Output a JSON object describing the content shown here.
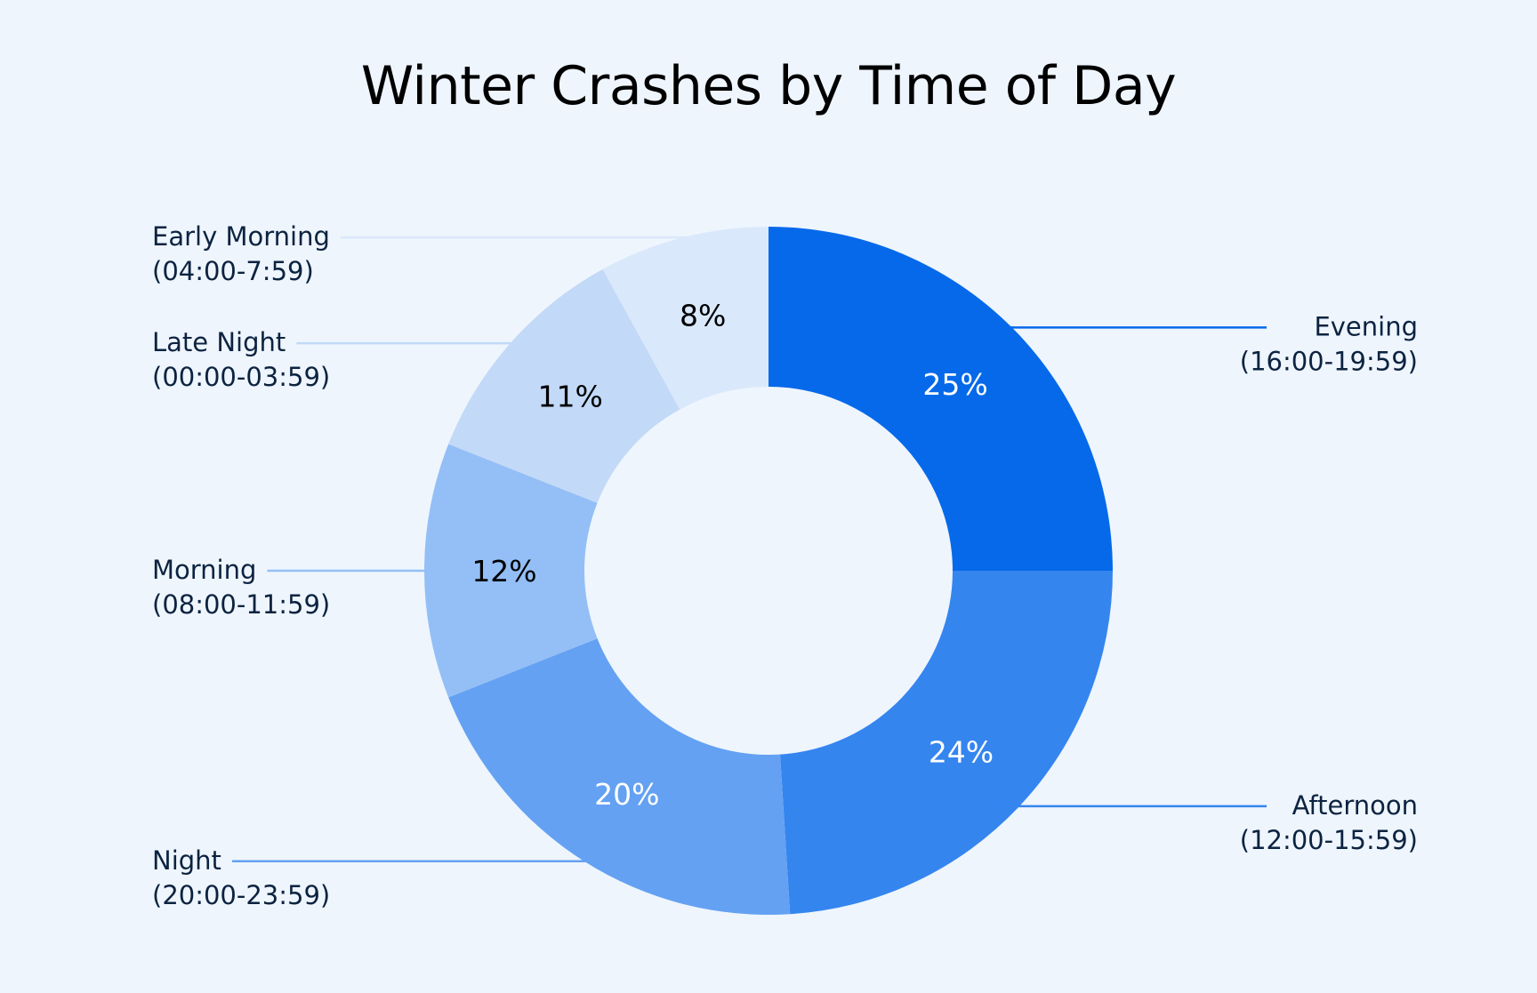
{
  "chart_data": {
    "type": "pie",
    "variant": "donut",
    "title": "Winter Crashes by Time of Day",
    "unit": "%",
    "slices": [
      {
        "name": "Evening",
        "range": "(16:00-19:59)",
        "value": 25,
        "label": "25%",
        "color": "#0569ea",
        "label_color": "#ffffff",
        "side": "right"
      },
      {
        "name": "Afternoon",
        "range": "(12:00-15:59)",
        "value": 24,
        "label": "24%",
        "color": "#3585ef",
        "label_color": "#ffffff",
        "side": "right"
      },
      {
        "name": "Night",
        "range": "(20:00-23:59)",
        "value": 20,
        "label": "20%",
        "color": "#64a1f2",
        "label_color": "#ffffff",
        "side": "left"
      },
      {
        "name": "Morning",
        "range": "(08:00-11:59)",
        "value": 12,
        "label": "12%",
        "color": "#93bff6",
        "label_color": "#000000",
        "side": "left"
      },
      {
        "name": "Late Night",
        "range": "(00:00-03:59)",
        "value": 11,
        "label": "11%",
        "color": "#c2d9f7",
        "label_color": "#000000",
        "side": "left"
      },
      {
        "name": "Early Morning",
        "range": "(04:00-7:59)",
        "value": 8,
        "label": "8%",
        "color": "#dae8fb",
        "label_color": "#000000",
        "side": "left"
      }
    ]
  }
}
